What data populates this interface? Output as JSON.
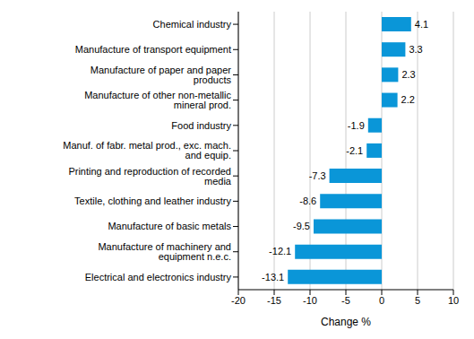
{
  "chart_data": {
    "type": "bar",
    "orientation": "horizontal",
    "categories": [
      "Chemical industry",
      "Manufacture of transport equipment",
      "Manufacture of paper and paper products",
      "Manufacture of other non-metallic mineral prod.",
      "Food industry",
      "Manuf. of fabr. metal prod., exc. mach. and equip.",
      "Printing and reproduction of recorded media",
      "Textile, clothing and leather industry",
      "Manufacture of basic metals",
      "Manufacture of machinery and equipment n.e.c.",
      "Electrical and electronics industry"
    ],
    "values": [
      4.1,
      3.3,
      2.3,
      2.2,
      -1.9,
      -2.1,
      -7.3,
      -8.6,
      -9.5,
      -12.1,
      -13.1
    ],
    "color": "#0a96d8",
    "xlabel": "Change %",
    "xlim": [
      -20,
      10
    ],
    "xticks": [
      -20,
      -15,
      -10,
      -5,
      0,
      5,
      10
    ],
    "grid": true,
    "data_labels": true
  }
}
